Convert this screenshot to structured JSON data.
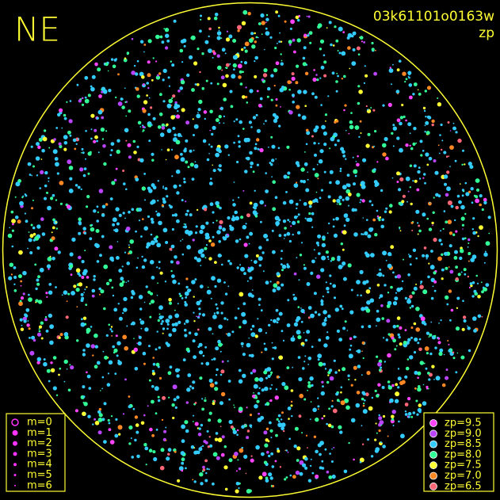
{
  "corner_label": "NE",
  "image_id": "03k61101o0163w",
  "mode": "zp",
  "magnitude_legend": {
    "items": [
      "m=0",
      "m=1",
      "m=2",
      "m=3",
      "m=4",
      "m=5",
      "m=6"
    ],
    "color": "#ff33ff"
  },
  "zp_legend": {
    "items": [
      {
        "label": "zp=9.5",
        "color": "#ff44ff"
      },
      {
        "label": "zp=9.0",
        "color": "#bb44ff"
      },
      {
        "label": "zp=8.5",
        "color": "#33ccff"
      },
      {
        "label": "zp=8.0",
        "color": "#33ff99"
      },
      {
        "label": "zp=7.5",
        "color": "#ffff33"
      },
      {
        "label": "zp=7.0",
        "color": "#ff8822"
      },
      {
        "label": "zp=6.5",
        "color": "#ff6677"
      }
    ]
  }
}
